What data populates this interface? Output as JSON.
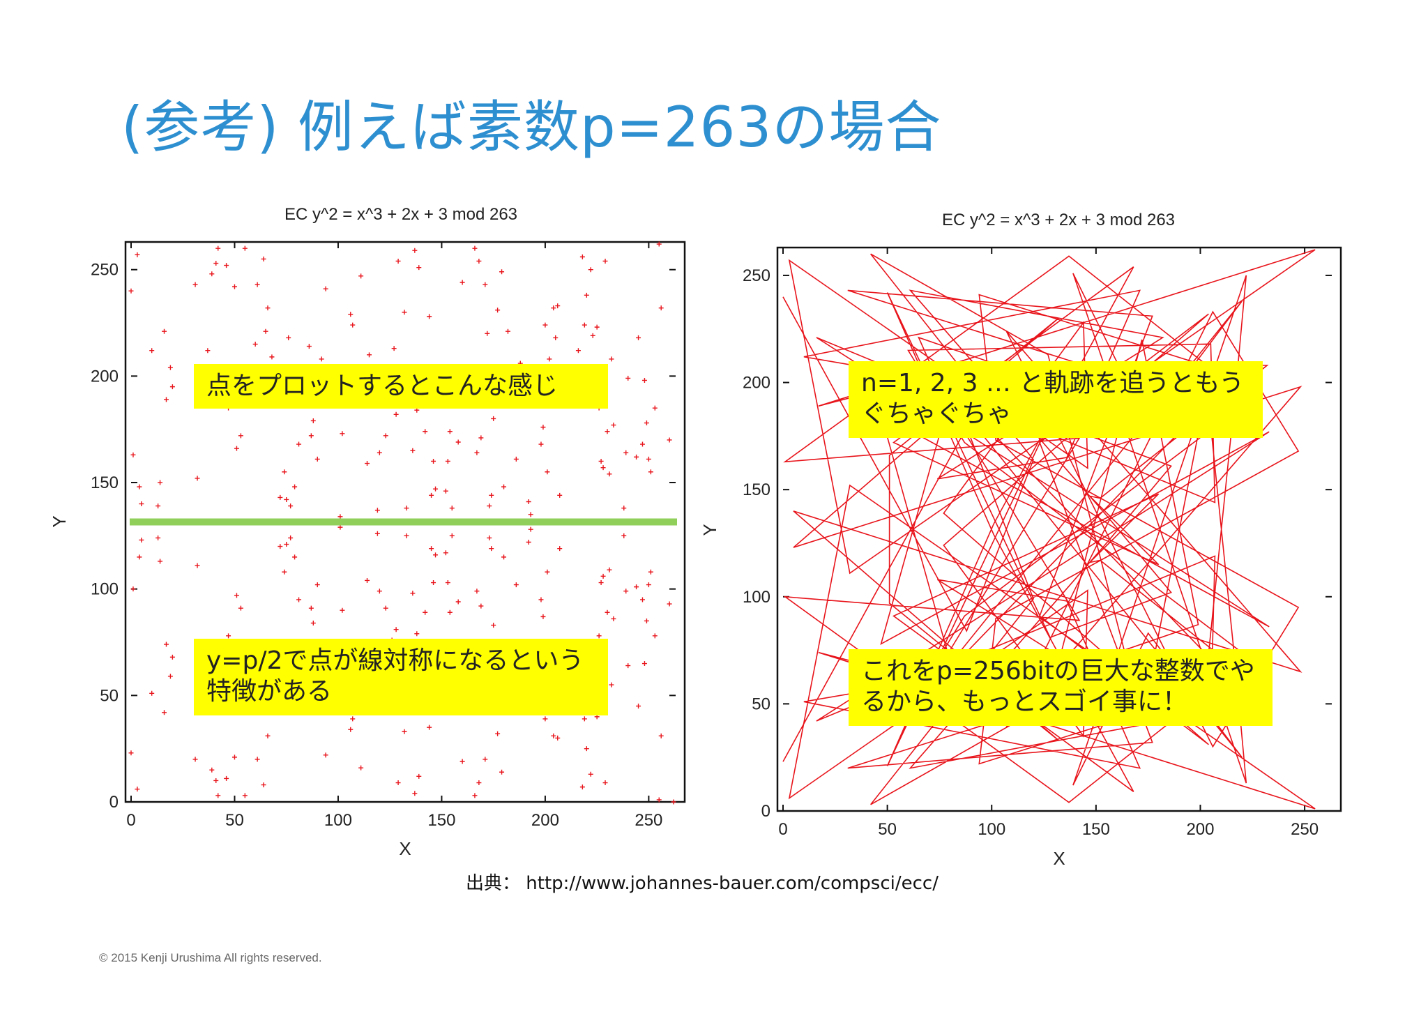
{
  "slide": {
    "title": "(参考) 例えば素数p=263の場合",
    "source": "出典： http://www.johannes-bauer.com/compsci/ecc/",
    "copyright": "© 2015 Kenji Urushima All rights reserved.",
    "accent_color": "#2e8fd0",
    "point_color": "#e8141b",
    "symmetry_line_color": "#8fcf5a",
    "callout_color": "#ffff00"
  },
  "callouts": {
    "left_top": "点をプロットするとこんな感じ",
    "left_bottom": "y=p/2で点が線対称になるという特徴がある",
    "right_top": "n=1, 2, 3 … と軌跡を追うともうぐちゃぐちゃ",
    "right_bottom": "これをp=256bitの巨大な整数でやるから、もっとスゴイ事に！"
  },
  "chart_data": [
    {
      "type": "scatter",
      "title": "EC y^2 = x^3 + 2x + 3 mod 263",
      "xlabel": "X",
      "ylabel": "Y",
      "xlim": [
        0,
        263
      ],
      "ylim": [
        0,
        263
      ],
      "xticks": [
        0,
        50,
        100,
        150,
        200,
        250
      ],
      "yticks": [
        0,
        50,
        100,
        150,
        200,
        250
      ],
      "marker": "+",
      "symmetry_line_y": 131.5,
      "modulus": 263,
      "curve": {
        "a": 2,
        "b": 3
      },
      "points_rendered": "all solutions of y^2 = x^3 + 2x + 3 (mod 263)"
    },
    {
      "type": "line",
      "title": "EC y^2 = x^3 + 2x + 3 mod 263",
      "xlabel": "X",
      "ylabel": "Y",
      "xlim": [
        0,
        263
      ],
      "ylim": [
        0,
        263
      ],
      "xticks": [
        0,
        50,
        100,
        150,
        200,
        250
      ],
      "yticks": [
        0,
        50,
        100,
        150,
        200,
        250
      ],
      "modulus": 263,
      "curve": {
        "a": 2,
        "b": 3
      },
      "points_rendered": "multiples nP joined in order n=1,2,3..."
    }
  ]
}
